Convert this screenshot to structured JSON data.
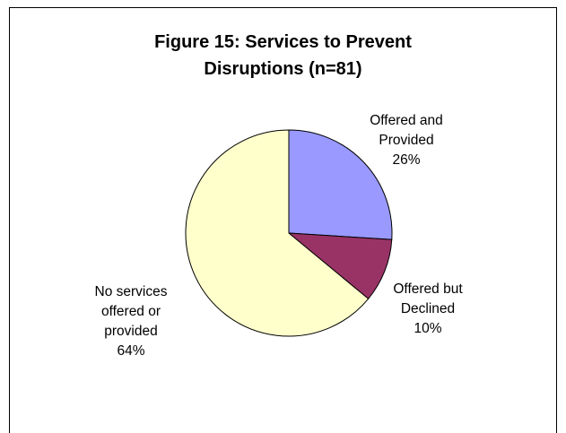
{
  "chart_data": {
    "type": "pie",
    "title": [
      "Figure 15: Services to Prevent",
      "Disruptions (n=81)"
    ],
    "slices": [
      {
        "label": [
          "Offered and",
          "Provided",
          "26%"
        ],
        "value": 26,
        "color": "#9999ff"
      },
      {
        "label": [
          "Offered but",
          "Declined",
          "10%"
        ],
        "value": 10,
        "color": "#993366"
      },
      {
        "label": [
          "No services",
          "offered or",
          "provided",
          "64%"
        ],
        "value": 64,
        "color": "#ffffcc"
      }
    ]
  }
}
